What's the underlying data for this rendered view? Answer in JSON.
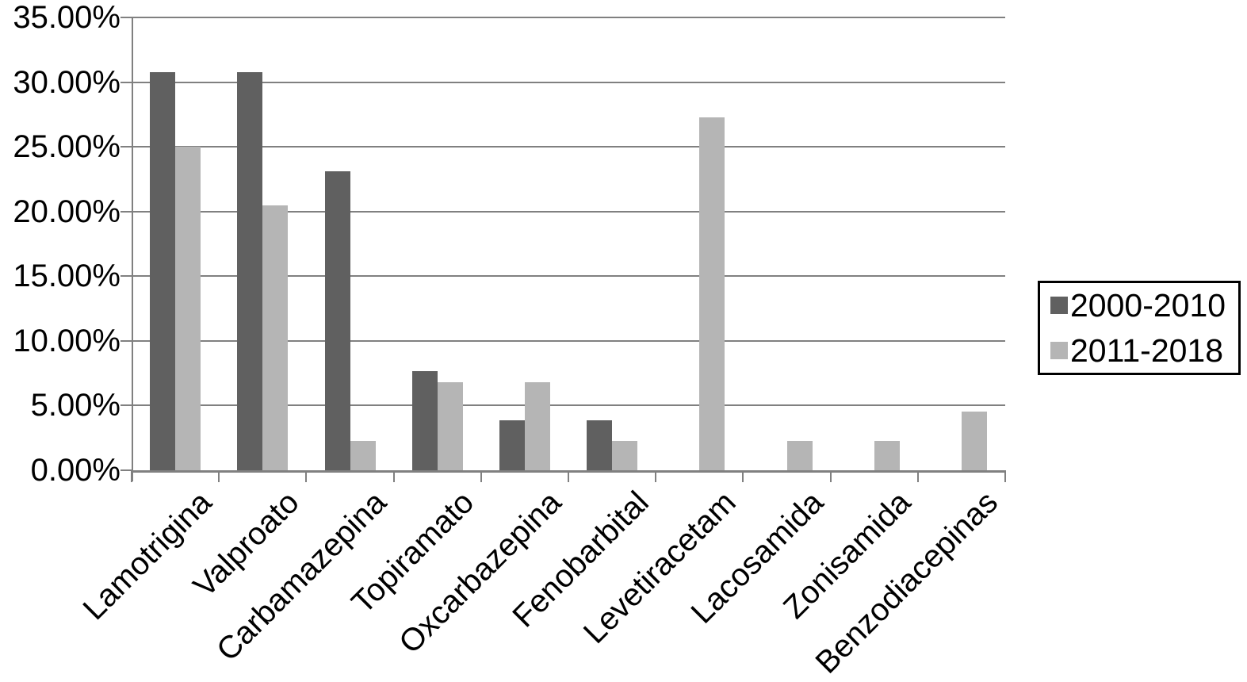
{
  "chart_data": {
    "type": "bar",
    "title": "",
    "xlabel": "",
    "ylabel": "",
    "categories": [
      "Lamotrigina",
      "Valproato",
      "Carbamazepina",
      "Topiramato",
      "Oxcarbazepina",
      "Fenobarbital",
      "Levetiracetam",
      "Lacosamida",
      "Zonisamida",
      "Benzodiacepinas"
    ],
    "series": [
      {
        "name": "2000-2010",
        "color": "#606060",
        "values": [
          30.77,
          30.77,
          23.08,
          7.69,
          3.85,
          3.85,
          0,
          0,
          0,
          0
        ]
      },
      {
        "name": "2011-2018",
        "color": "#b5b5b5",
        "values": [
          25.0,
          20.45,
          2.27,
          6.82,
          6.82,
          2.27,
          27.27,
          2.27,
          2.27,
          4.55
        ]
      }
    ],
    "ylim": [
      0,
      35
    ],
    "ytick_step": 5,
    "ytick_labels": [
      "0.00%",
      "5.00%",
      "10.00%",
      "15.00%",
      "20.00%",
      "25.00%",
      "30.00%",
      "35.00%"
    ],
    "grid": true,
    "legend_position": "right-middle"
  },
  "colors": {
    "background": "#ffffff",
    "gridline": "#808080",
    "axis": "#808080",
    "legend_border": "#000000",
    "text": "#000000"
  }
}
